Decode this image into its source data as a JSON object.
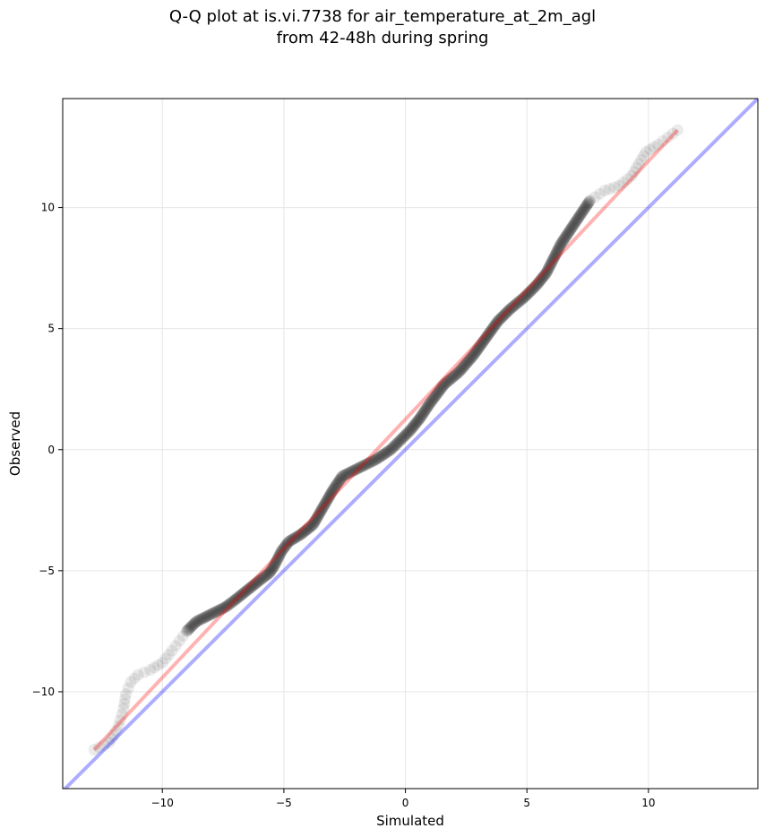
{
  "chart_data": {
    "type": "scatter",
    "title_line1": "Q-Q plot at is.vi.7738 for air_temperature_at_2m_agl",
    "title_line2": "from 42-48h during spring",
    "xlabel": "Simulated",
    "ylabel": "Observed",
    "xlim": [
      -14.1,
      14.5
    ],
    "ylim": [
      -14.0,
      14.5
    ],
    "xticks": [
      -10,
      -5,
      0,
      5,
      10
    ],
    "yticks": [
      -10,
      -5,
      0,
      5,
      10
    ],
    "xtick_labels": [
      "−10",
      "−5",
      "0",
      "5",
      "10"
    ],
    "ytick_labels": [
      "−10",
      "−5",
      "0",
      "5",
      "10"
    ],
    "grid": true,
    "colors": {
      "points": "#000000",
      "fit_line": "#ff0000",
      "identity_line": "#0000ff"
    },
    "quantile_curve": [
      [
        -12.8,
        -12.4
      ],
      [
        -12.2,
        -12.1
      ],
      [
        -12.0,
        -11.8
      ],
      [
        -11.8,
        -11.4
      ],
      [
        -11.6,
        -10.7
      ],
      [
        -11.5,
        -10.1
      ],
      [
        -11.3,
        -9.6
      ],
      [
        -11.0,
        -9.3
      ],
      [
        -10.5,
        -9.1
      ],
      [
        -10.0,
        -8.8
      ],
      [
        -9.6,
        -8.3
      ],
      [
        -9.3,
        -7.9
      ],
      [
        -9.0,
        -7.5
      ],
      [
        -8.6,
        -7.1
      ],
      [
        -8.0,
        -6.8
      ],
      [
        -7.4,
        -6.5
      ],
      [
        -7.0,
        -6.2
      ],
      [
        -6.5,
        -5.8
      ],
      [
        -6.0,
        -5.4
      ],
      [
        -5.6,
        -5.1
      ],
      [
        -5.4,
        -4.8
      ],
      [
        -5.1,
        -4.2
      ],
      [
        -4.8,
        -3.8
      ],
      [
        -4.3,
        -3.5
      ],
      [
        -3.8,
        -3.1
      ],
      [
        -3.4,
        -2.4
      ],
      [
        -3.0,
        -1.7
      ],
      [
        -2.6,
        -1.1
      ],
      [
        -2.0,
        -0.8
      ],
      [
        -1.2,
        -0.4
      ],
      [
        -0.6,
        0.0
      ],
      [
        -0.2,
        0.4
      ],
      [
        0.2,
        0.8
      ],
      [
        0.6,
        1.3
      ],
      [
        1.0,
        1.9
      ],
      [
        1.6,
        2.7
      ],
      [
        2.2,
        3.2
      ],
      [
        2.8,
        3.9
      ],
      [
        3.3,
        4.6
      ],
      [
        3.8,
        5.3
      ],
      [
        4.3,
        5.8
      ],
      [
        4.9,
        6.3
      ],
      [
        5.4,
        6.8
      ],
      [
        5.8,
        7.3
      ],
      [
        6.1,
        7.9
      ],
      [
        6.4,
        8.5
      ],
      [
        6.8,
        9.1
      ],
      [
        7.2,
        9.7
      ],
      [
        7.6,
        10.3
      ],
      [
        8.2,
        10.7
      ],
      [
        8.8,
        10.9
      ],
      [
        9.3,
        11.3
      ],
      [
        9.6,
        11.8
      ],
      [
        9.9,
        12.3
      ],
      [
        10.4,
        12.6
      ],
      [
        10.8,
        12.9
      ],
      [
        11.2,
        13.2
      ]
    ],
    "fit_line": [
      [
        -12.8,
        -12.4
      ],
      [
        11.2,
        13.2
      ]
    ],
    "identity_line": [
      [
        -14.1,
        -14.1
      ],
      [
        14.5,
        14.5
      ]
    ]
  }
}
